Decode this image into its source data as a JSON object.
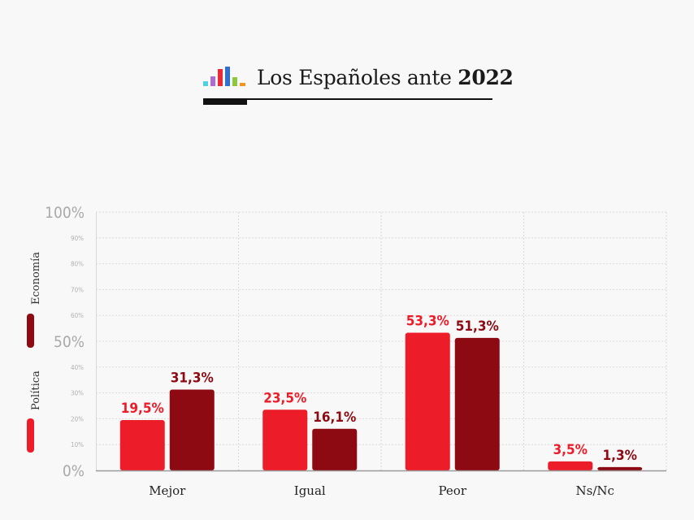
{
  "header": {
    "title_light": "Los Españoles ante",
    "title_bold": "2022"
  },
  "legend": [
    {
      "name": "Economía",
      "color": "#8e0a12"
    },
    {
      "name": "Política",
      "color": "#ed1c29"
    }
  ],
  "chart_data": {
    "type": "bar",
    "categories": [
      "Mejor",
      "Igual",
      "Peor",
      "Ns/Nc"
    ],
    "series": [
      {
        "name": "Política",
        "values": [
          19.5,
          23.5,
          53.3,
          3.5
        ],
        "labels": [
          "19,5%",
          "23,5%",
          "53,3%",
          "3,5%"
        ],
        "color": "#ed1c29"
      },
      {
        "name": "Economía",
        "values": [
          31.3,
          16.1,
          51.3,
          1.3
        ],
        "labels": [
          "31,3%",
          "16,1%",
          "51,3%",
          "1,3%"
        ],
        "color": "#8e0a12"
      }
    ],
    "ylim": [
      0,
      100
    ],
    "yticks": [
      {
        "v": 0,
        "label": "0%",
        "major": true
      },
      {
        "v": 10,
        "label": "10%",
        "major": false
      },
      {
        "v": 20,
        "label": "20%",
        "major": false
      },
      {
        "v": 30,
        "label": "30%",
        "major": false
      },
      {
        "v": 40,
        "label": "40%",
        "major": false
      },
      {
        "v": 50,
        "label": "50%",
        "major": true
      },
      {
        "v": 60,
        "label": "60%",
        "major": false
      },
      {
        "v": 70,
        "label": "70%",
        "major": false
      },
      {
        "v": 80,
        "label": "80%",
        "major": false
      },
      {
        "v": 90,
        "label": "90%",
        "major": false
      },
      {
        "v": 100,
        "label": "100%",
        "major": true
      }
    ],
    "grid": true,
    "legend_position": "left"
  }
}
